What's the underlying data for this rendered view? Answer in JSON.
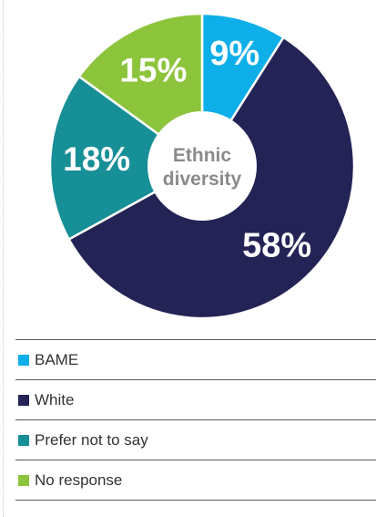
{
  "chart_data": {
    "type": "pie",
    "center_label": [
      "Ethnic",
      "diversity"
    ],
    "slices": [
      {
        "name": "BAME",
        "value": 9,
        "label": "9%",
        "color": "#0eaee9"
      },
      {
        "name": "White",
        "value": 58,
        "label": "58%",
        "color": "#232356"
      },
      {
        "name": "Prefer not to say",
        "value": 18,
        "label": "18%",
        "color": "#178f97"
      },
      {
        "name": "No response",
        "value": 15,
        "label": "15%",
        "color": "#8cc43c"
      }
    ],
    "legend": {
      "placement": "bottom",
      "items": [
        {
          "label": "BAME",
          "color": "#0eaee9"
        },
        {
          "label": "White",
          "color": "#232356"
        },
        {
          "label": "Prefer not to say",
          "color": "#178f97"
        },
        {
          "label": "No response",
          "color": "#8cc43c"
        }
      ]
    }
  }
}
